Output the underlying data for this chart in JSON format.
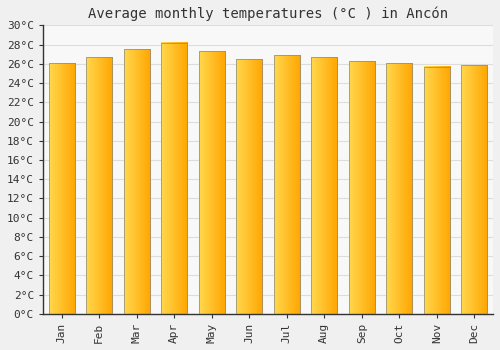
{
  "title": "Average monthly temperatures (°C ) in Ancón",
  "months": [
    "Jan",
    "Feb",
    "Mar",
    "Apr",
    "May",
    "Jun",
    "Jul",
    "Aug",
    "Sep",
    "Oct",
    "Nov",
    "Dec"
  ],
  "values": [
    26.1,
    26.7,
    27.5,
    28.2,
    27.3,
    26.5,
    26.9,
    26.7,
    26.3,
    26.1,
    25.7,
    25.9
  ],
  "bar_color_left": "#FFD84D",
  "bar_color_right": "#FFA500",
  "bar_edge_color": "#888888",
  "background_color": "#F0F0F0",
  "plot_bg_color": "#F8F8F8",
  "grid_color": "#DDDDDD",
  "ylim_min": 0,
  "ylim_max": 30,
  "ytick_step": 2,
  "title_fontsize": 10,
  "tick_fontsize": 8,
  "title_font_family": "monospace",
  "axis_color": "#333333"
}
